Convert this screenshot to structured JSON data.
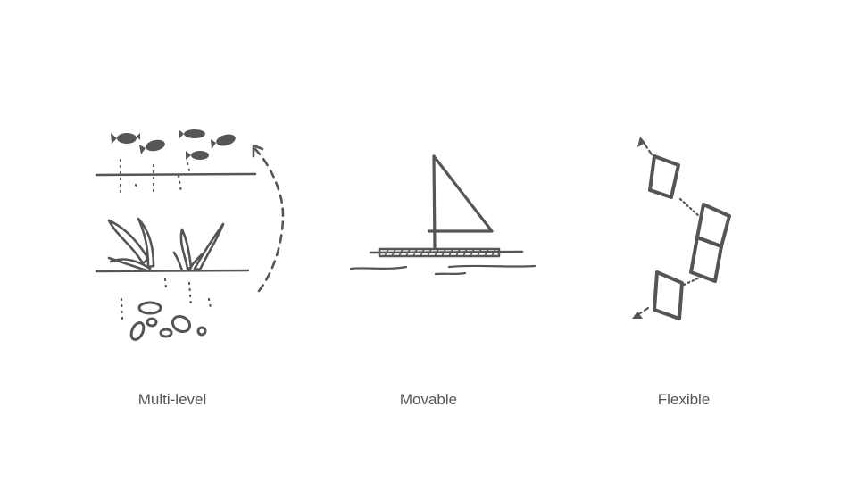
{
  "concepts": [
    {
      "id": "multi-level",
      "label": "Multi-level",
      "icon": "aquaculture-layers-icon"
    },
    {
      "id": "movable",
      "label": "Movable",
      "icon": "sailboat-raft-icon"
    },
    {
      "id": "flexible",
      "label": "Flexible",
      "icon": "linked-modules-icon"
    }
  ],
  "colors": {
    "ink": "#555555",
    "background": "#ffffff"
  }
}
